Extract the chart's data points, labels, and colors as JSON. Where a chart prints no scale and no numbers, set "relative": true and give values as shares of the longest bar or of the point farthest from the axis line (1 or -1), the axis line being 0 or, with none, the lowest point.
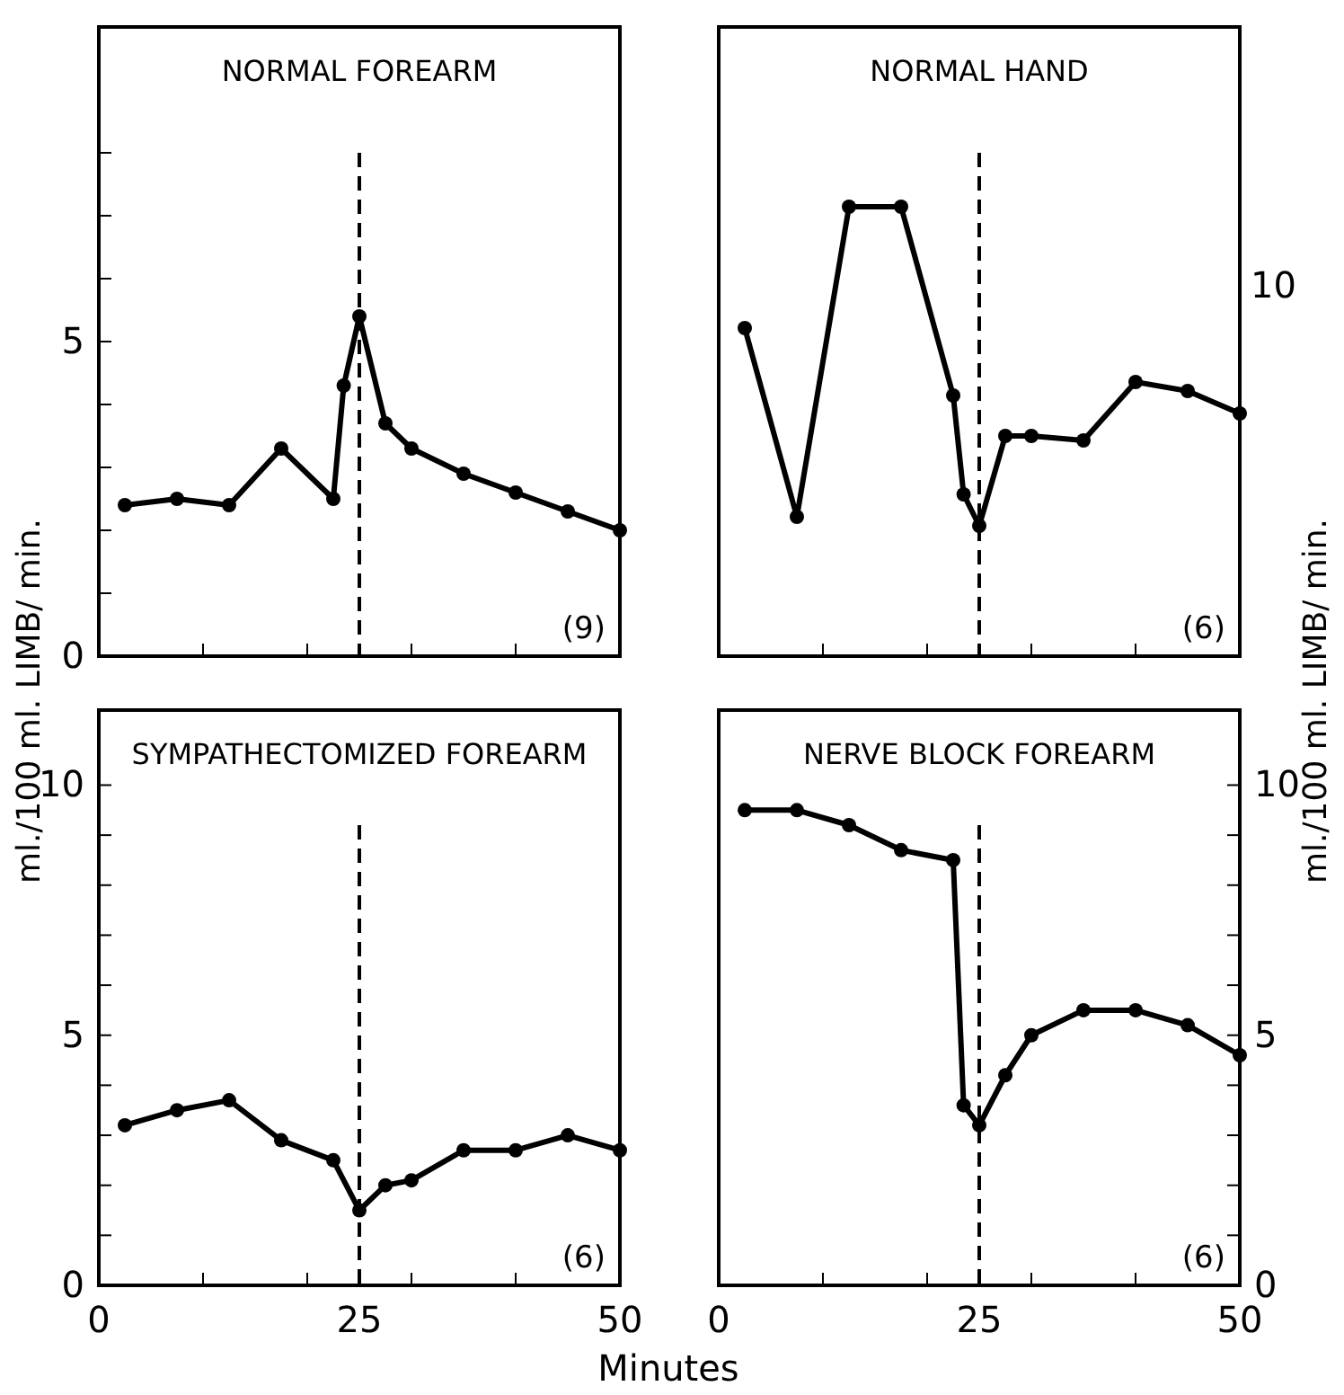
{
  "chart_data": [
    {
      "type": "line",
      "title": "NORMAL FOREARM",
      "ylabel": "ml./100 ml. LIMB/ min.",
      "xlim": [
        0,
        50
      ],
      "xticks": [
        {
          "value": 10,
          "label": null
        },
        {
          "value": 20,
          "label": null
        },
        {
          "value": 25,
          "label": null
        },
        {
          "value": 30,
          "label": null
        },
        {
          "value": 40,
          "label": null
        }
      ],
      "ylim": [
        0,
        10
      ],
      "yticks": [
        0,
        {
          "value": 1,
          "label": null
        },
        {
          "value": 2,
          "label": null
        },
        {
          "value": 3,
          "label": null
        },
        {
          "value": 4,
          "label": null
        },
        5,
        {
          "value": 6,
          "label": null
        },
        {
          "value": 7,
          "label": null
        },
        {
          "value": 8,
          "label": null
        }
      ],
      "tick_labels": "y",
      "marker": "circle",
      "line_style": "solid",
      "x": [
        2.5,
        7.5,
        12.5,
        17.5,
        22.5,
        23.5,
        25,
        27.5,
        30,
        35,
        40,
        45,
        50
      ],
      "series": [
        {
          "color": "#000000",
          "values": [
            2.4,
            2.5,
            2.4,
            3.3,
            2.5,
            4.3,
            5.4,
            3.7,
            3.3,
            2.9,
            2.6,
            2.3,
            2.0
          ]
        }
      ],
      "ref_lines": [
        {
          "axis": "x",
          "value": 25,
          "line_style": "dashed",
          "color": "#000000"
        }
      ],
      "annotations": [
        "(9)"
      ]
    },
    {
      "type": "line",
      "title": "NORMAL HAND",
      "y2label": "ml./100 ml. LIMB/ min.",
      "xlim": [
        0,
        50
      ],
      "xticks": [
        {
          "value": 10,
          "label": null
        },
        {
          "value": 20,
          "label": null
        },
        {
          "value": 25,
          "label": null
        },
        {
          "value": 30,
          "label": null
        },
        {
          "value": 40,
          "label": null
        }
      ],
      "relative": true,
      "tick_labels": false,
      "marker": "circle",
      "line_style": "solid",
      "x": [
        2.5,
        7.5,
        12.5,
        17.5,
        22.5,
        23.5,
        25,
        27.5,
        30,
        35,
        40,
        45,
        50
      ],
      "series": [
        {
          "color": "#000000",
          "axis": "y2",
          "values": [
            0.73,
            0.31,
            1,
            1,
            0.58,
            0.36,
            0.29,
            0.49,
            0.49,
            0.48,
            0.61,
            0.59,
            0.54
          ]
        }
      ],
      "ref_lines": [
        {
          "axis": "x",
          "value": 25,
          "line_style": "dashed",
          "color": "#000000"
        }
      ],
      "annotations": [
        "(6)",
        "10"
      ]
    },
    {
      "type": "line",
      "title": "SYMPATHECTOMIZED FOREARM",
      "xlabel": "Minutes",
      "xlim": [
        0,
        50
      ],
      "xticks": [
        0,
        {
          "value": 10,
          "label": null
        },
        {
          "value": 20,
          "label": null
        },
        25,
        {
          "value": 30,
          "label": null
        },
        {
          "value": 40,
          "label": null
        },
        50
      ],
      "ylim": [
        0,
        11.5
      ],
      "yticks": [
        0,
        {
          "value": 1,
          "label": null
        },
        {
          "value": 2,
          "label": null
        },
        {
          "value": 3,
          "label": null
        },
        {
          "value": 4,
          "label": null
        },
        5,
        {
          "value": 6,
          "label": null
        },
        {
          "value": 7,
          "label": null
        },
        {
          "value": 8,
          "label": null
        },
        {
          "value": 9,
          "label": null
        },
        10
      ],
      "marker": "circle",
      "line_style": "solid",
      "x": [
        2.5,
        7.5,
        12.5,
        17.5,
        22.5,
        25,
        27.5,
        30,
        35,
        40,
        45,
        50
      ],
      "series": [
        {
          "color": "#000000",
          "values": [
            3.2,
            3.5,
            3.7,
            2.9,
            2.5,
            1.5,
            2.0,
            2.1,
            2.7,
            2.7,
            3.0,
            2.7
          ]
        }
      ],
      "ref_lines": [
        {
          "axis": "x",
          "value": 25,
          "line_style": "dashed",
          "color": "#000000"
        }
      ],
      "annotations": [
        "(6)"
      ]
    },
    {
      "type": "line",
      "title": "NERVE BLOCK FOREARM",
      "xlim": [
        0,
        50
      ],
      "xticks": [
        0,
        {
          "value": 10,
          "label": null
        },
        {
          "value": 20,
          "label": null
        },
        25,
        {
          "value": 30,
          "label": null
        },
        {
          "value": 40,
          "label": null
        },
        50
      ],
      "y2lim": [
        0,
        11.5
      ],
      "y2ticks": [
        0,
        {
          "value": 1,
          "label": null
        },
        {
          "value": 2,
          "label": null
        },
        {
          "value": 3,
          "label": null
        },
        {
          "value": 4,
          "label": null
        },
        5,
        {
          "value": 6,
          "label": null
        },
        {
          "value": 7,
          "label": null
        },
        {
          "value": 8,
          "label": null
        },
        {
          "value": 9,
          "label": null
        },
        10
      ],
      "marker": "circle",
      "line_style": "solid",
      "x": [
        2.5,
        7.5,
        12.5,
        17.5,
        22.5,
        23.5,
        25,
        27.5,
        30,
        35,
        40,
        45,
        50
      ],
      "series": [
        {
          "color": "#000000",
          "axis": "y2",
          "values": [
            9.5,
            9.5,
            9.2,
            8.7,
            8.5,
            3.6,
            3.2,
            4.2,
            5.0,
            5.5,
            5.5,
            5.2,
            4.6
          ]
        }
      ],
      "ref_lines": [
        {
          "axis": "x",
          "value": 25,
          "line_style": "dashed",
          "color": "#000000"
        }
      ],
      "annotations": [
        "(6)"
      ]
    }
  ]
}
